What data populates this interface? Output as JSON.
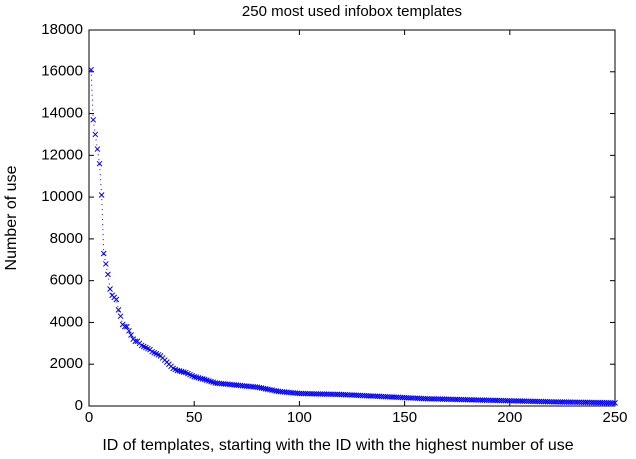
{
  "chart_data": {
    "type": "scatter",
    "title": "250 most used infobox templates",
    "x_label": "ID of templates, starting with the ID with the highest number of use",
    "y_label": "Number of use",
    "xlim": [
      0,
      250
    ],
    "xticks": [
      0,
      50,
      100,
      150,
      200,
      250
    ],
    "ylim": [
      0,
      18000
    ],
    "yticks": [
      0,
      2000,
      4000,
      6000,
      8000,
      10000,
      12000,
      14000,
      16000,
      18000
    ],
    "series": [
      {
        "color": "#0000ff",
        "x": [
          1,
          2,
          3,
          4,
          5,
          6,
          7,
          8,
          9,
          10,
          11,
          12,
          13,
          14,
          15,
          16,
          17,
          18,
          19,
          20,
          21,
          22,
          23,
          24,
          25,
          26,
          27,
          28,
          29,
          30,
          31,
          32,
          33,
          34,
          35,
          36,
          37,
          38,
          39,
          40,
          41,
          42,
          43,
          44,
          45,
          46,
          47,
          48,
          49,
          50,
          51,
          52,
          53,
          54,
          55,
          56,
          57,
          58,
          59,
          60,
          61,
          62,
          63,
          64,
          65,
          66,
          67,
          68,
          69,
          70,
          71,
          72,
          73,
          74,
          75,
          76,
          77,
          78,
          79,
          80,
          81,
          82,
          83,
          84,
          85,
          86,
          87,
          88,
          89,
          90,
          91,
          92,
          93,
          94,
          95,
          96,
          97,
          98,
          99,
          100,
          101,
          102,
          103,
          104,
          105,
          106,
          107,
          108,
          109,
          110,
          111,
          112,
          113,
          114,
          115,
          116,
          117,
          118,
          119,
          120,
          121,
          122,
          123,
          124,
          125,
          126,
          127,
          128,
          129,
          130,
          131,
          132,
          133,
          134,
          135,
          136,
          137,
          138,
          139,
          140,
          141,
          142,
          143,
          144,
          145,
          146,
          147,
          148,
          149,
          150,
          151,
          152,
          153,
          154,
          155,
          156,
          157,
          158,
          159,
          160,
          161,
          162,
          163,
          164,
          165,
          166,
          167,
          168,
          169,
          170,
          171,
          172,
          173,
          174,
          175,
          176,
          177,
          178,
          179,
          180,
          181,
          182,
          183,
          184,
          185,
          186,
          187,
          188,
          189,
          190,
          191,
          192,
          193,
          194,
          195,
          196,
          197,
          198,
          199,
          200,
          201,
          202,
          203,
          204,
          205,
          206,
          207,
          208,
          209,
          210,
          211,
          212,
          213,
          214,
          215,
          216,
          217,
          218,
          219,
          220,
          221,
          222,
          223,
          224,
          225,
          226,
          227,
          228,
          229,
          230,
          231,
          232,
          233,
          234,
          235,
          236,
          237,
          238,
          239,
          240,
          241,
          242,
          243,
          244,
          245,
          246,
          247,
          248,
          249,
          250
        ],
        "values": [
          16100,
          13700,
          13000,
          12300,
          11600,
          10100,
          7300,
          6800,
          6300,
          5600,
          5300,
          5200,
          5100,
          4600,
          4300,
          3900,
          3800,
          3800,
          3600,
          3400,
          3200,
          3100,
          3100,
          3000,
          2900,
          2850,
          2800,
          2750,
          2700,
          2600,
          2550,
          2500,
          2450,
          2400,
          2300,
          2200,
          2100,
          2000,
          1900,
          1800,
          1750,
          1700,
          1680,
          1650,
          1620,
          1600,
          1550,
          1500,
          1450,
          1400,
          1380,
          1350,
          1320,
          1300,
          1270,
          1240,
          1200,
          1170,
          1140,
          1100,
          1090,
          1080,
          1070,
          1060,
          1050,
          1040,
          1030,
          1020,
          1010,
          1000,
          990,
          980,
          970,
          960,
          950,
          940,
          930,
          920,
          910,
          900,
          880,
          860,
          840,
          820,
          800,
          780,
          760,
          740,
          720,
          700,
          690,
          680,
          670,
          660,
          650,
          640,
          630,
          620,
          610,
          600,
          597,
          595,
          592,
          590,
          587,
          585,
          582,
          580,
          577,
          575,
          572,
          570,
          567,
          565,
          562,
          560,
          557,
          555,
          552,
          550,
          545,
          540,
          535,
          530,
          525,
          520,
          515,
          510,
          505,
          500,
          495,
          490,
          485,
          480,
          475,
          470,
          465,
          460,
          455,
          450,
          445,
          440,
          435,
          430,
          425,
          420,
          415,
          410,
          405,
          400,
          395,
          390,
          385,
          380,
          375,
          370,
          365,
          360,
          355,
          350,
          348,
          345,
          343,
          340,
          338,
          335,
          333,
          330,
          328,
          325,
          323,
          320,
          318,
          315,
          313,
          310,
          308,
          305,
          303,
          300,
          298,
          295,
          293,
          290,
          288,
          285,
          283,
          280,
          278,
          275,
          273,
          270,
          268,
          265,
          263,
          260,
          258,
          255,
          253,
          250,
          248,
          245,
          243,
          240,
          238,
          235,
          233,
          230,
          228,
          225,
          223,
          220,
          218,
          215,
          213,
          210,
          208,
          205,
          203,
          200,
          198,
          196,
          195,
          193,
          192,
          190,
          188,
          187,
          185,
          183,
          182,
          180,
          178,
          177,
          175,
          173,
          172,
          170,
          168,
          167,
          165,
          163,
          162,
          160,
          158,
          157,
          155,
          153,
          152,
          150
        ]
      }
    ]
  }
}
